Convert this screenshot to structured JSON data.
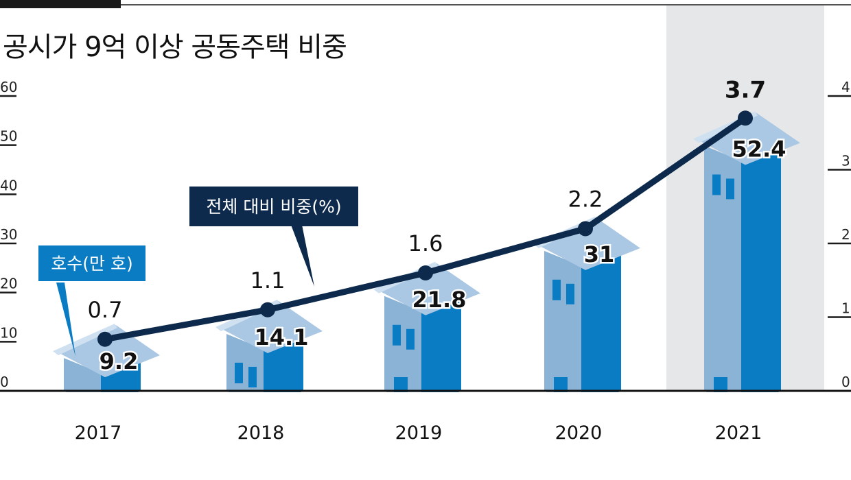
{
  "title": "공시가 9억 이상 공동주택 비중",
  "colors": {
    "line": "#0d2a4d",
    "house_front": "#8ab3d6",
    "house_side": "#0a7cc4",
    "roof": "#aac8e3",
    "roof_edge": "#cfe1f1",
    "window": "#0a7cc4",
    "highlight_bg": "#e6e7e9",
    "callout_count": "#0a7cc4",
    "callout_share": "#0d2a4d"
  },
  "callouts": {
    "count_label": "호수(만 호)",
    "share_label": "전체 대비 비중(%)"
  },
  "chart_data": {
    "type": "bar",
    "categories": [
      "2017",
      "2018",
      "2019",
      "2020",
      "2021"
    ],
    "series": [
      {
        "name": "호수(만 호)",
        "type": "bar",
        "axis": "left",
        "values": [
          9.2,
          14.1,
          21.8,
          31,
          52.4
        ]
      },
      {
        "name": "전체 대비 비중(%)",
        "type": "line",
        "axis": "right",
        "values": [
          0.7,
          1.1,
          1.6,
          2.2,
          3.7
        ]
      }
    ],
    "y_left": {
      "ticks": [
        "0",
        "10",
        "20",
        "30",
        "40",
        "50",
        "60"
      ],
      "ylim": [
        0,
        60
      ]
    },
    "y_right": {
      "ticks": [
        "0",
        "1",
        "2",
        "3",
        "4"
      ],
      "ylim": [
        0,
        4
      ]
    },
    "highlight_category": "2021",
    "grid": false
  }
}
